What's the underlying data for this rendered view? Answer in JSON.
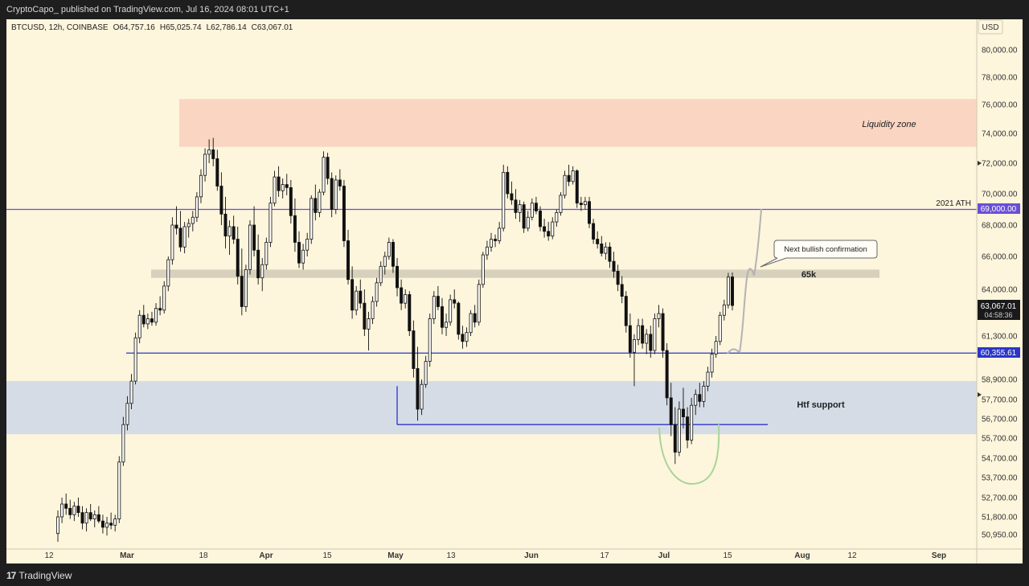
{
  "header": {
    "published": "CryptoCapo_ published on TradingView.com, Jul 16, 2024 08:01 UTC+1"
  },
  "footer": {
    "brand": "TradingView"
  },
  "chart_data": {
    "type": "candlestick",
    "symbol_line": "BTCUSD, 12h, COINBASE",
    "ohlc": {
      "open": "O64,757.16",
      "high": "H65,025.74",
      "low": "L62,786.14",
      "close": "C63,067.01"
    },
    "currency": "USD",
    "y_ticks": [
      "80,000.00",
      "78,000.00",
      "76,000.00",
      "74,000.00",
      "72,000.00",
      "70,000.00",
      "68,000.00",
      "66,000.00",
      "64,000.00",
      "61,300.00",
      "58,900.00",
      "57,700.00",
      "56,700.00",
      "55,700.00",
      "54,700.00",
      "53,700.00",
      "52,700.00",
      "51,800.00",
      "50,950.00"
    ],
    "x_ticks": [
      "12",
      "Mar",
      "18",
      "Apr",
      "15",
      "May",
      "13",
      "Jun",
      "17",
      "Jul",
      "15",
      "Aug",
      "12",
      "Sep"
    ],
    "price_labels": {
      "ath": "69,000.00",
      "support": "60,355.61",
      "last": "63,067.01",
      "countdown": "04:58:36"
    },
    "annotations": {
      "liquidity": "Liquidity zone",
      "ath_label": "2021 ATH",
      "callout": "Next bullish confirmation",
      "level_65k": "65k",
      "htf": "Htf support"
    },
    "zones": [
      {
        "name": "Liquidity zone",
        "from": 73100,
        "to": 76400,
        "color": "#f9d5c2"
      },
      {
        "name": "Htf support",
        "from": 55900,
        "to": 58800,
        "color": "#d5dce6"
      },
      {
        "name": "65k band",
        "from": 64700,
        "to": 65200,
        "color": "#d6d0bd"
      }
    ],
    "levels": [
      {
        "name": "2021 ATH",
        "price": 69000,
        "color": "#6a4fd6"
      },
      {
        "name": "support",
        "price": 60355.61,
        "color": "#2a35c8"
      },
      {
        "name": "may low",
        "price": 56400,
        "color": "#2a35c8"
      }
    ],
    "candles": [
      [
        51000,
        52100,
        50600,
        51800
      ],
      [
        51800,
        52700,
        51500,
        52400
      ],
      [
        52400,
        52900,
        51900,
        52200
      ],
      [
        52200,
        52600,
        51700,
        51900
      ],
      [
        51900,
        52500,
        51600,
        52300
      ],
      [
        52300,
        52700,
        51800,
        52000
      ],
      [
        52000,
        52300,
        51200,
        51500
      ],
      [
        51500,
        52200,
        51100,
        52000
      ],
      [
        52000,
        52400,
        51600,
        51700
      ],
      [
        51700,
        52100,
        51300,
        51900
      ],
      [
        51900,
        52300,
        51500,
        51600
      ],
      [
        51600,
        51900,
        51000,
        51300
      ],
      [
        51300,
        51800,
        50900,
        51500
      ],
      [
        51500,
        52000,
        51200,
        51400
      ],
      [
        51400,
        51900,
        51100,
        51700
      ],
      [
        51700,
        54800,
        51500,
        54500
      ],
      [
        54500,
        56800,
        54300,
        56400
      ],
      [
        56400,
        57900,
        56100,
        57500
      ],
      [
        57500,
        59200,
        57200,
        58800
      ],
      [
        58800,
        61500,
        58600,
        61200
      ],
      [
        61200,
        62800,
        60900,
        62500
      ],
      [
        62500,
        63100,
        61800,
        62000
      ],
      [
        62000,
        62600,
        61700,
        62300
      ],
      [
        62300,
        62700,
        61900,
        62100
      ],
      [
        62100,
        63200,
        61900,
        62900
      ],
      [
        62900,
        63600,
        62500,
        62800
      ],
      [
        62800,
        64500,
        62600,
        64200
      ],
      [
        64200,
        66000,
        63900,
        65800
      ],
      [
        65800,
        68500,
        65500,
        68000
      ],
      [
        68000,
        69200,
        67400,
        67800
      ],
      [
        67800,
        68900,
        66300,
        66600
      ],
      [
        66600,
        68200,
        66200,
        67900
      ],
      [
        67900,
        68400,
        67200,
        68100
      ],
      [
        68100,
        68900,
        67600,
        68500
      ],
      [
        68500,
        70100,
        68200,
        69800
      ],
      [
        69800,
        71600,
        69400,
        71200
      ],
      [
        71200,
        73000,
        70800,
        72600
      ],
      [
        72600,
        73600,
        72000,
        72900
      ],
      [
        72900,
        73700,
        71800,
        72300
      ],
      [
        72300,
        72900,
        70200,
        70500
      ],
      [
        70500,
        71400,
        68000,
        68700
      ],
      [
        68700,
        69800,
        66500,
        67300
      ],
      [
        67300,
        68300,
        66100,
        67900
      ],
      [
        67900,
        68600,
        66800,
        67100
      ],
      [
        67100,
        67900,
        64300,
        64800
      ],
      [
        64800,
        66500,
        62500,
        63000
      ],
      [
        63000,
        65500,
        62700,
        65200
      ],
      [
        65200,
        68300,
        64900,
        68000
      ],
      [
        68000,
        69200,
        66000,
        66400
      ],
      [
        66400,
        67400,
        64300,
        64700
      ],
      [
        64700,
        65900,
        63900,
        65500
      ],
      [
        65500,
        67200,
        65200,
        66900
      ],
      [
        66900,
        69800,
        66600,
        69400
      ],
      [
        69400,
        71500,
        69200,
        71100
      ],
      [
        71100,
        71800,
        69800,
        70200
      ],
      [
        70200,
        71000,
        69700,
        70600
      ],
      [
        70600,
        71300,
        69900,
        70400
      ],
      [
        70400,
        70900,
        68100,
        68600
      ],
      [
        68600,
        69700,
        66300,
        66900
      ],
      [
        66900,
        67600,
        65300,
        65600
      ],
      [
        65600,
        66800,
        65200,
        66400
      ],
      [
        66400,
        67500,
        66000,
        67100
      ],
      [
        67100,
        69900,
        66800,
        69700
      ],
      [
        69700,
        70600,
        68300,
        68800
      ],
      [
        68800,
        70300,
        68500,
        70100
      ],
      [
        70100,
        72800,
        69900,
        72400
      ],
      [
        72400,
        72700,
        70600,
        71000
      ],
      [
        71000,
        71400,
        68500,
        69000
      ],
      [
        69000,
        71200,
        68700,
        70900
      ],
      [
        70900,
        71600,
        70200,
        70500
      ],
      [
        70500,
        70900,
        66600,
        67000
      ],
      [
        67000,
        67700,
        64300,
        64600
      ],
      [
        64600,
        65400,
        62300,
        62800
      ],
      [
        62800,
        64200,
        62500,
        63900
      ],
      [
        63900,
        64600,
        62900,
        63200
      ],
      [
        63200,
        64000,
        61300,
        61700
      ],
      [
        61700,
        62700,
        60500,
        62300
      ],
      [
        62300,
        63600,
        62000,
        63300
      ],
      [
        63300,
        64700,
        63000,
        64400
      ],
      [
        64400,
        65700,
        64200,
        65400
      ],
      [
        65400,
        66300,
        64900,
        66000
      ],
      [
        66000,
        67200,
        65800,
        66900
      ],
      [
        66900,
        67100,
        65000,
        65400
      ],
      [
        65400,
        65900,
        63600,
        64100
      ],
      [
        64100,
        64600,
        62800,
        63200
      ],
      [
        63200,
        64000,
        62900,
        63700
      ],
      [
        63700,
        63900,
        61300,
        61600
      ],
      [
        61600,
        62200,
        59000,
        59500
      ],
      [
        59500,
        60700,
        56600,
        57200
      ],
      [
        57200,
        58900,
        56900,
        58600
      ],
      [
        58600,
        60200,
        58400,
        59900
      ],
      [
        59900,
        62600,
        59600,
        62300
      ],
      [
        62300,
        63900,
        62000,
        63600
      ],
      [
        63600,
        64200,
        62800,
        63000
      ],
      [
        63000,
        63500,
        61400,
        61800
      ],
      [
        61800,
        62600,
        61300,
        62100
      ],
      [
        62100,
        63700,
        61900,
        63400
      ],
      [
        63400,
        64000,
        62900,
        63200
      ],
      [
        63200,
        63300,
        61100,
        61400
      ],
      [
        61400,
        61900,
        60600,
        61000
      ],
      [
        61000,
        61800,
        60700,
        61500
      ],
      [
        61500,
        62800,
        61300,
        62600
      ],
      [
        62600,
        63100,
        61800,
        62100
      ],
      [
        62100,
        64600,
        61900,
        64300
      ],
      [
        64300,
        66300,
        64100,
        66100
      ],
      [
        66100,
        67000,
        65800,
        66600
      ],
      [
        66600,
        67500,
        66300,
        67100
      ],
      [
        67100,
        67400,
        66600,
        67000
      ],
      [
        67000,
        68200,
        66800,
        67800
      ],
      [
        67800,
        71900,
        67600,
        71400
      ],
      [
        71400,
        71800,
        69700,
        70000
      ],
      [
        70000,
        70800,
        69300,
        69600
      ],
      [
        69600,
        70300,
        68400,
        68800
      ],
      [
        68800,
        69600,
        68200,
        69300
      ],
      [
        69300,
        69500,
        67500,
        67800
      ],
      [
        67800,
        68900,
        67600,
        68500
      ],
      [
        68500,
        69700,
        68300,
        69400
      ],
      [
        69400,
        69800,
        68700,
        68900
      ],
      [
        68900,
        69200,
        67600,
        67900
      ],
      [
        67900,
        68400,
        67200,
        67600
      ],
      [
        67600,
        68200,
        67000,
        67300
      ],
      [
        67300,
        68500,
        67100,
        68200
      ],
      [
        68200,
        69000,
        67900,
        68800
      ],
      [
        68800,
        70100,
        68600,
        69900
      ],
      [
        69900,
        71500,
        69700,
        71200
      ],
      [
        71200,
        71900,
        70500,
        70800
      ],
      [
        70800,
        71800,
        70600,
        71500
      ],
      [
        71500,
        71600,
        69100,
        69400
      ],
      [
        69400,
        69800,
        68900,
        69300
      ],
      [
        69300,
        69800,
        69000,
        69500
      ],
      [
        69500,
        69800,
        67800,
        68100
      ],
      [
        68100,
        68400,
        66800,
        67100
      ],
      [
        67100,
        67600,
        66500,
        66800
      ],
      [
        66800,
        67300,
        66000,
        66200
      ],
      [
        66200,
        66900,
        65800,
        66600
      ],
      [
        66600,
        66900,
        65300,
        65700
      ],
      [
        65700,
        66300,
        64700,
        65100
      ],
      [
        65100,
        65500,
        63900,
        64300
      ],
      [
        64300,
        64800,
        63200,
        63600
      ],
      [
        63600,
        63900,
        61500,
        61900
      ],
      [
        61900,
        62600,
        60100,
        60400
      ],
      [
        60400,
        61400,
        58500,
        61100
      ],
      [
        61100,
        62300,
        60800,
        61900
      ],
      [
        61900,
        62300,
        60600,
        60900
      ],
      [
        60900,
        61700,
        60300,
        61400
      ],
      [
        61400,
        61900,
        60100,
        60500
      ],
      [
        60500,
        62600,
        60300,
        62300
      ],
      [
        62300,
        63100,
        61800,
        62600
      ],
      [
        62600,
        62900,
        60100,
        60500
      ],
      [
        60500,
        60900,
        57400,
        57800
      ],
      [
        57800,
        58700,
        55800,
        56400
      ],
      [
        56400,
        57300,
        54400,
        55000
      ],
      [
        55000,
        57600,
        54800,
        57200
      ],
      [
        57200,
        58400,
        56200,
        56800
      ],
      [
        56800,
        57300,
        55200,
        55600
      ],
      [
        55600,
        57800,
        55400,
        57400
      ],
      [
        57400,
        58300,
        56900,
        58000
      ],
      [
        58000,
        58700,
        57300,
        57600
      ],
      [
        57600,
        58800,
        57300,
        58500
      ],
      [
        58500,
        59600,
        58200,
        59300
      ],
      [
        59300,
        60600,
        59000,
        60300
      ],
      [
        60300,
        61300,
        60100,
        61000
      ],
      [
        61000,
        62700,
        60800,
        62500
      ],
      [
        62500,
        63400,
        62200,
        63100
      ],
      [
        63100,
        65000,
        62900,
        64750
      ],
      [
        64757,
        65025,
        62786,
        63067
      ]
    ]
  }
}
